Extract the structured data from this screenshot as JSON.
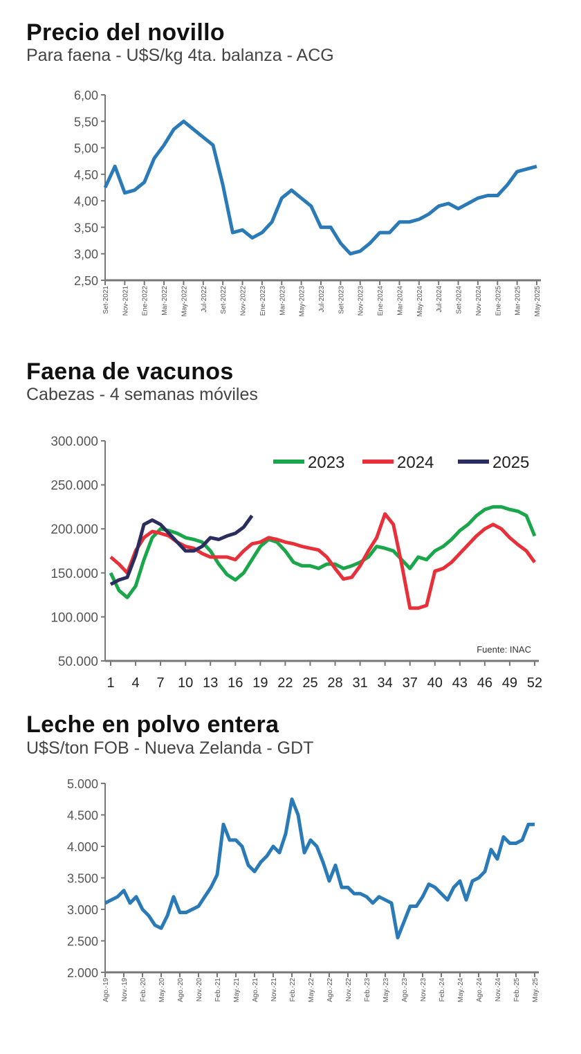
{
  "chart_data": [
    {
      "type": "line",
      "title": "Precio del novillo",
      "subtitle": "Para faena - U$S/kg 4ta. balanza - ACG",
      "ylim": [
        2.5,
        6.0
      ],
      "yticks": [
        "2,50",
        "3,00",
        "3,50",
        "4,00",
        "4,50",
        "5,00",
        "5,50",
        "6,00"
      ],
      "xticks": [
        "Set-2021",
        "Nov-2021",
        "Ene-2022",
        "Mar-2022",
        "May-2022",
        "Jul-2022",
        "Set-2022",
        "Nov-2022",
        "Ene-2023",
        "Mar-2023",
        "May-2023",
        "Jul-2023",
        "Set-2023",
        "Nov-2023",
        "Ene-2024",
        "Mar-2024",
        "May-2024",
        "Jul-2024",
        "Set-2024",
        "Nov-2024",
        "Ene-2025",
        "Mar-2025",
        "May-2025"
      ],
      "grid": false,
      "color": "#2a7ab8",
      "series": [
        {
          "values": [
            4.25,
            4.65,
            4.15,
            4.2,
            4.35,
            4.8,
            5.05,
            5.35,
            5.5,
            5.35,
            5.2,
            5.05,
            4.3,
            3.4,
            3.45,
            3.3,
            3.4,
            3.6,
            4.05,
            4.2,
            4.05,
            3.9,
            3.5,
            3.5,
            3.2,
            3.0,
            3.05,
            3.2,
            3.4,
            3.4,
            3.6,
            3.6,
            3.65,
            3.75,
            3.9,
            3.95,
            3.85,
            3.95,
            4.05,
            4.1,
            4.1,
            4.3,
            4.55,
            4.6,
            4.65
          ]
        }
      ]
    },
    {
      "type": "line",
      "title": "Faena de vacunos",
      "subtitle": "Cabezas - 4 semanas móviles",
      "ylim": [
        50000,
        300000
      ],
      "yticks": [
        "50.000",
        "100.000",
        "150.000",
        "200.000",
        "250.000",
        "300.000"
      ],
      "xticks": [
        "1",
        "4",
        "7",
        "10",
        "13",
        "16",
        "19",
        "22",
        "25",
        "28",
        "31",
        "34",
        "37",
        "40",
        "43",
        "46",
        "49",
        "52"
      ],
      "xlim": [
        1,
        52
      ],
      "grid": false,
      "legend": "top-right",
      "source": "Fuente: INAC",
      "series": [
        {
          "name": "2023",
          "color": "#1aa64a",
          "values": [
            150000,
            130000,
            122000,
            135000,
            165000,
            190000,
            200000,
            198000,
            195000,
            190000,
            188000,
            185000,
            175000,
            160000,
            148000,
            142000,
            150000,
            165000,
            180000,
            188000,
            185000,
            175000,
            162000,
            158000,
            158000,
            155000,
            160000,
            160000,
            155000,
            158000,
            162000,
            168000,
            180000,
            178000,
            175000,
            165000,
            155000,
            168000,
            165000,
            175000,
            180000,
            188000,
            198000,
            205000,
            215000,
            222000,
            225000,
            225000,
            222000,
            220000,
            215000,
            192000
          ]
        },
        {
          "name": "2024",
          "color": "#e8303a",
          "values": [
            168000,
            160000,
            150000,
            175000,
            190000,
            197000,
            195000,
            192000,
            185000,
            180000,
            178000,
            172000,
            168000,
            168000,
            168000,
            165000,
            175000,
            183000,
            185000,
            190000,
            188000,
            185000,
            183000,
            180000,
            178000,
            176000,
            168000,
            155000,
            143000,
            145000,
            158000,
            175000,
            190000,
            217000,
            205000,
            160000,
            110000,
            110000,
            113000,
            152000,
            155000,
            162000,
            172000,
            182000,
            192000,
            200000,
            205000,
            200000,
            190000,
            182000,
            175000,
            162000
          ]
        },
        {
          "name": "2025",
          "color": "#2b2d5e",
          "values": [
            137000,
            142000,
            145000,
            170000,
            205000,
            210000,
            205000,
            195000,
            185000,
            175000,
            175000,
            180000,
            190000,
            188000,
            192000,
            195000,
            202000,
            215000
          ]
        }
      ]
    },
    {
      "type": "line",
      "title": "Leche en polvo entera",
      "subtitle": "U$S/ton FOB - Nueva Zelanda - GDT",
      "ylim": [
        2000,
        5000
      ],
      "yticks": [
        "2.000",
        "2.500",
        "3.000",
        "3.500",
        "4.000",
        "4.500",
        "5.000"
      ],
      "xticks": [
        "Ago.-19",
        "Nov.-19",
        "Feb.-20",
        "May.-20",
        "Ago.-20",
        "Nov.-20",
        "Feb.-21",
        "May.-21",
        "Ago.-21",
        "Nov.-21",
        "Feb.-22",
        "May.-22",
        "Ago.-22",
        "Nov.-22",
        "Feb.-23",
        "May.-23",
        "Ago.-23",
        "Nov.-23",
        "Feb.-24",
        "May.-24",
        "Ago.-24",
        "Nov.-24",
        "Feb.-25",
        "May.-25"
      ],
      "grid": false,
      "color": "#2a7ab8",
      "series": [
        {
          "values": [
            3100,
            3150,
            3200,
            3300,
            3100,
            3200,
            3000,
            2900,
            2750,
            2700,
            2900,
            3200,
            2950,
            2950,
            3000,
            3050,
            3200,
            3350,
            3550,
            4350,
            4100,
            4100,
            4000,
            3700,
            3600,
            3750,
            3850,
            4000,
            3900,
            4200,
            4750,
            4500,
            3900,
            4100,
            4000,
            3750,
            3450,
            3700,
            3350,
            3350,
            3250,
            3250,
            3200,
            3100,
            3200,
            3150,
            3100,
            2550,
            2800,
            3050,
            3050,
            3200,
            3400,
            3350,
            3250,
            3150,
            3350,
            3450,
            3150,
            3450,
            3500,
            3600,
            3950,
            3800,
            4150,
            4050,
            4050,
            4100,
            4350,
            4350
          ]
        }
      ]
    }
  ]
}
